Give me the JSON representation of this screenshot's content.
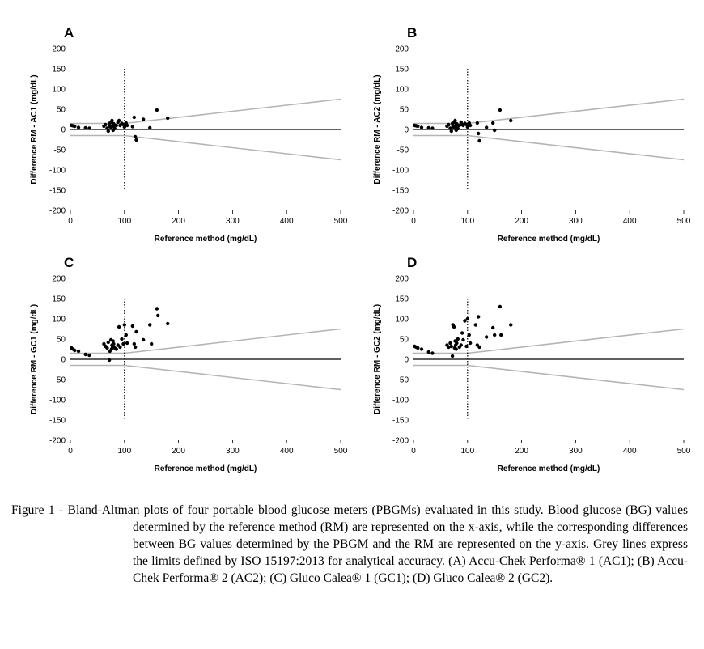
{
  "chart_data": [
    {
      "type": "scatter",
      "title": "A",
      "xlabel": "Reference method (mg/dL)",
      "ylabel": "Difference RM - AC1 (mg/dL)",
      "xlim": [
        0,
        500
      ],
      "ylim": [
        -200,
        200
      ],
      "xticks": [
        0,
        100,
        200,
        300,
        400,
        500
      ],
      "yticks": [
        200,
        150,
        100,
        50,
        0,
        -50,
        -100,
        -150,
        -200
      ],
      "vline_x": 100,
      "points": [
        [
          2,
          10
        ],
        [
          5,
          9
        ],
        [
          8,
          8
        ],
        [
          15,
          5
        ],
        [
          28,
          4
        ],
        [
          35,
          3
        ],
        [
          62,
          8
        ],
        [
          65,
          12
        ],
        [
          68,
          3
        ],
        [
          70,
          -4
        ],
        [
          72,
          15
        ],
        [
          73,
          8
        ],
        [
          75,
          5
        ],
        [
          76,
          18
        ],
        [
          77,
          22
        ],
        [
          78,
          10
        ],
        [
          79,
          -2
        ],
        [
          80,
          14
        ],
        [
          81,
          6
        ],
        [
          82,
          2
        ],
        [
          85,
          10
        ],
        [
          88,
          18
        ],
        [
          90,
          22
        ],
        [
          92,
          10
        ],
        [
          95,
          15
        ],
        [
          98,
          12
        ],
        [
          100,
          6
        ],
        [
          103,
          16
        ],
        [
          105,
          10
        ],
        [
          115,
          7
        ],
        [
          118,
          30
        ],
        [
          120,
          -18
        ],
        [
          122,
          -26
        ],
        [
          135,
          25
        ],
        [
          147,
          4
        ],
        [
          160,
          48
        ],
        [
          180,
          28
        ]
      ]
    },
    {
      "type": "scatter",
      "title": "B",
      "xlabel": "Reference method (mg/dL)",
      "ylabel": "Difference RM - AC2 (mg/dL)",
      "xlim": [
        0,
        500
      ],
      "ylim": [
        -200,
        200
      ],
      "xticks": [
        0,
        100,
        200,
        300,
        400,
        500
      ],
      "yticks": [
        200,
        150,
        100,
        50,
        0,
        -50,
        -100,
        -150,
        -200
      ],
      "vline_x": 100,
      "points": [
        [
          2,
          10
        ],
        [
          5,
          9
        ],
        [
          8,
          8
        ],
        [
          15,
          5
        ],
        [
          28,
          4
        ],
        [
          35,
          3
        ],
        [
          62,
          8
        ],
        [
          65,
          12
        ],
        [
          68,
          3
        ],
        [
          70,
          -4
        ],
        [
          72,
          15
        ],
        [
          73,
          8
        ],
        [
          75,
          5
        ],
        [
          76,
          18
        ],
        [
          77,
          22
        ],
        [
          78,
          10
        ],
        [
          79,
          -2
        ],
        [
          80,
          14
        ],
        [
          81,
          6
        ],
        [
          82,
          2
        ],
        [
          85,
          10
        ],
        [
          88,
          18
        ],
        [
          90,
          12
        ],
        [
          92,
          10
        ],
        [
          95,
          15
        ],
        [
          98,
          12
        ],
        [
          100,
          6
        ],
        [
          103,
          16
        ],
        [
          105,
          10
        ],
        [
          118,
          16
        ],
        [
          120,
          -10
        ],
        [
          122,
          -28
        ],
        [
          135,
          5
        ],
        [
          147,
          16
        ],
        [
          150,
          -2
        ],
        [
          160,
          48
        ],
        [
          180,
          22
        ]
      ]
    },
    {
      "type": "scatter",
      "title": "C",
      "xlabel": "Reference method (mg/dL)",
      "ylabel": "Difference RM - GC1 (mg/dL)",
      "xlim": [
        0,
        500
      ],
      "ylim": [
        -200,
        200
      ],
      "xticks": [
        0,
        100,
        200,
        300,
        400,
        500
      ],
      "yticks": [
        200,
        150,
        100,
        50,
        0,
        -50,
        -100,
        -150,
        -200
      ],
      "vline_x": 100,
      "points": [
        [
          2,
          28
        ],
        [
          5,
          25
        ],
        [
          8,
          22
        ],
        [
          15,
          20
        ],
        [
          28,
          12
        ],
        [
          35,
          10
        ],
        [
          62,
          38
        ],
        [
          65,
          32
        ],
        [
          68,
          28
        ],
        [
          70,
          42
        ],
        [
          72,
          -2
        ],
        [
          73,
          20
        ],
        [
          75,
          48
        ],
        [
          76,
          25
        ],
        [
          77,
          35
        ],
        [
          78,
          30
        ],
        [
          79,
          45
        ],
        [
          80,
          38
        ],
        [
          82,
          28
        ],
        [
          85,
          25
        ],
        [
          88,
          35
        ],
        [
          90,
          80
        ],
        [
          92,
          30
        ],
        [
          95,
          50
        ],
        [
          98,
          38
        ],
        [
          100,
          85
        ],
        [
          103,
          60
        ],
        [
          105,
          40
        ],
        [
          115,
          82
        ],
        [
          118,
          38
        ],
        [
          120,
          30
        ],
        [
          122,
          68
        ],
        [
          135,
          48
        ],
        [
          147,
          85
        ],
        [
          150,
          38
        ],
        [
          160,
          125
        ],
        [
          162,
          108
        ],
        [
          180,
          88
        ]
      ]
    },
    {
      "type": "scatter",
      "title": "D",
      "xlabel": "Reference method (mg/dL)",
      "ylabel": "Difference RM - GC2 (mg/dL)",
      "xlim": [
        0,
        500
      ],
      "ylim": [
        -200,
        200
      ],
      "xticks": [
        0,
        100,
        200,
        300,
        400,
        500
      ],
      "yticks": [
        200,
        150,
        100,
        50,
        0,
        -50,
        -100,
        -150,
        -200
      ],
      "vline_x": 100,
      "points": [
        [
          2,
          32
        ],
        [
          5,
          30
        ],
        [
          8,
          28
        ],
        [
          15,
          25
        ],
        [
          28,
          18
        ],
        [
          35,
          15
        ],
        [
          62,
          35
        ],
        [
          65,
          30
        ],
        [
          68,
          40
        ],
        [
          70,
          32
        ],
        [
          72,
          8
        ],
        [
          73,
          85
        ],
        [
          75,
          80
        ],
        [
          76,
          28
        ],
        [
          77,
          45
        ],
        [
          78,
          35
        ],
        [
          79,
          25
        ],
        [
          80,
          40
        ],
        [
          82,
          50
        ],
        [
          85,
          30
        ],
        [
          88,
          35
        ],
        [
          90,
          65
        ],
        [
          92,
          48
        ],
        [
          95,
          95
        ],
        [
          98,
          32
        ],
        [
          100,
          100
        ],
        [
          103,
          60
        ],
        [
          105,
          40
        ],
        [
          115,
          85
        ],
        [
          118,
          35
        ],
        [
          120,
          105
        ],
        [
          122,
          30
        ],
        [
          135,
          55
        ],
        [
          147,
          78
        ],
        [
          150,
          60
        ],
        [
          160,
          130
        ],
        [
          162,
          60
        ],
        [
          180,
          85
        ]
      ]
    }
  ],
  "style": {
    "point_color": "#000000",
    "limit_line_color": "#b4b4b4",
    "zero_line_color": "#000000"
  },
  "caption": {
    "label": "Figure 1 -",
    "text": "Bland-Altman plots of four portable blood glucose meters (PBGMs) evaluated in this study. Blood glucose (BG) values determined by the reference method (RM) are represented on the x-axis, while the corresponding differences between BG values determined by the PBGM and the RM are represented on the y-axis. Grey lines express the limits defined by ISO 15197:2013 for analytical accuracy. (A) Accu-Chek Performa® 1 (AC1); (B) Accu-Chek Performa® 2 (AC2); (C) Gluco Calea® 1 (GC1); (D) Gluco Calea® 2 (GC2)."
  }
}
